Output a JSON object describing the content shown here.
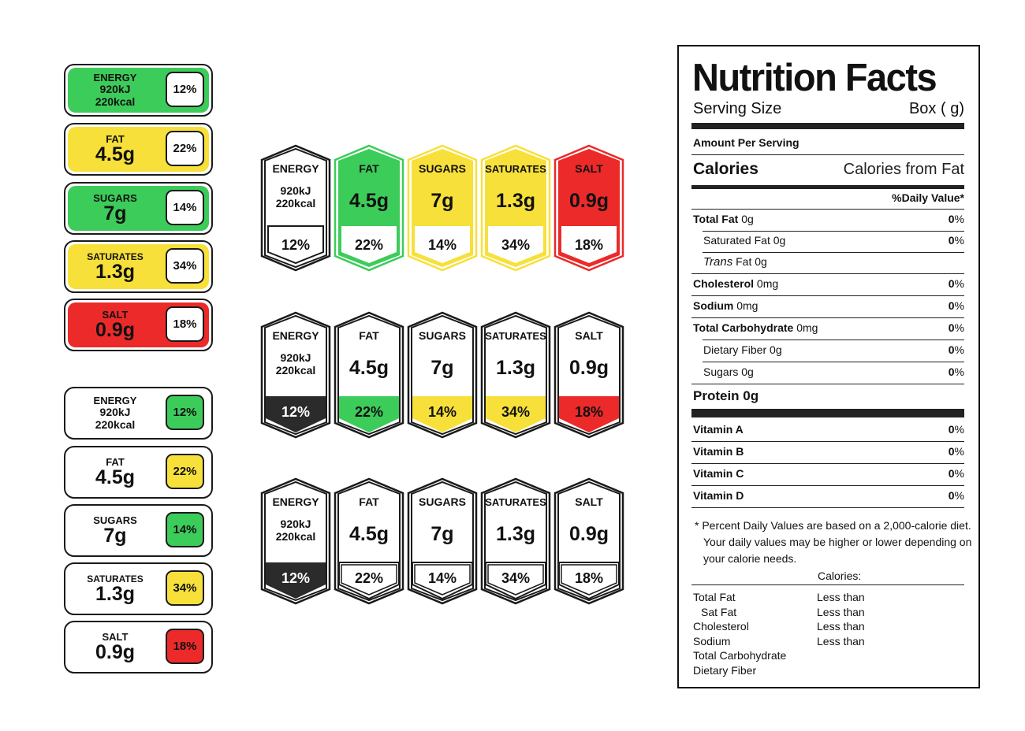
{
  "labels": {
    "energy": {
      "name": "ENERGY",
      "kj": "920kJ",
      "kcal": "220kcal",
      "percent": "12%"
    },
    "fat": {
      "name": "FAT",
      "value": "4.5g",
      "percent": "22%"
    },
    "sugars": {
      "name": "SUGARS",
      "value": "7g",
      "percent": "14%"
    },
    "saturates": {
      "name": "SATURATES",
      "value": "1.3g",
      "percent": "34%"
    },
    "salt": {
      "name": "SALT",
      "value": "0.9g",
      "percent": "18%"
    }
  },
  "colors": {
    "green": "#3ccc5a",
    "yellow": "#f7e03a",
    "red": "#ec2a2a",
    "dark": "#2b2b2b",
    "outline": "#1a1a1a"
  },
  "grid_styles": [
    {
      "style": "full-color",
      "fills": [
        "#ffffff",
        "#3ccc5a",
        "#f7e03a",
        "#f7e03a",
        "#ec2a2a"
      ]
    },
    {
      "style": "color-percent",
      "fills": [
        "#2b2b2b",
        "#3ccc5a",
        "#f7e03a",
        "#f7e03a",
        "#ec2a2a"
      ]
    },
    {
      "style": "monochrome",
      "fills": [
        "#2b2b2b",
        "#ffffff",
        "#ffffff",
        "#ffffff",
        "#ffffff"
      ]
    }
  ],
  "nutrition_facts": {
    "title": "Nutrition Facts",
    "serving_size_label": "Serving Size",
    "serving_size_value": "Box ( g)",
    "amount_per_serving": "Amount Per Serving",
    "calories": "Calories",
    "calories_from_fat": "Calories from Fat",
    "daily_value_header": "%Daily Value*",
    "rows": [
      {
        "label": "Total Fat",
        "amount": "0g",
        "dv": "0",
        "pct_sign": "%",
        "bold": true,
        "indent": false,
        "italic": false
      },
      {
        "label": "Saturated Fat",
        "amount": "0g",
        "dv": "0",
        "pct_sign": "%",
        "bold": false,
        "indent": true,
        "italic": false
      },
      {
        "label": "Trans",
        "amount": "Fat 0g",
        "dv": "",
        "pct_sign": "",
        "bold": false,
        "indent": true,
        "italic": true
      },
      {
        "label": "Cholesterol",
        "amount": "0mg",
        "dv": "0",
        "pct_sign": "%",
        "bold": true,
        "indent": false,
        "italic": false
      },
      {
        "label": "Sodium",
        "amount": "0mg",
        "dv": "0",
        "pct_sign": "%",
        "bold": true,
        "indent": false,
        "italic": false
      },
      {
        "label": "Total Carbohydrate",
        "amount": "0mg",
        "dv": "0",
        "pct_sign": "%",
        "bold": true,
        "indent": false,
        "italic": false
      },
      {
        "label": "Dietary Fiber",
        "amount": "0g",
        "dv": "0",
        "pct_sign": "%",
        "bold": false,
        "indent": true,
        "italic": false
      },
      {
        "label": "Sugars",
        "amount": "0g",
        "dv": "0",
        "pct_sign": "%",
        "bold": false,
        "indent": true,
        "italic": false
      }
    ],
    "protein": "Protein 0g",
    "vitamins": [
      {
        "label": "Vitamin A",
        "dv": "0",
        "pct_sign": "%"
      },
      {
        "label": "Vitamin B",
        "dv": "0",
        "pct_sign": "%"
      },
      {
        "label": "Vitamin C",
        "dv": "0",
        "pct_sign": "%"
      },
      {
        "label": "Vitamin D",
        "dv": "0",
        "pct_sign": "%"
      }
    ],
    "footnote_line1": "* Percent Daily Values are based on a 2,000-calorie diet.",
    "footnote_line2": "Your daily values may be higher or lower depending on",
    "footnote_line3": "your calorie needs.",
    "calories_header": "Calories:",
    "limits": [
      {
        "label": "Total Fat",
        "limit": "Less than"
      },
      {
        "label": "Sat Fat",
        "limit": "Less than"
      },
      {
        "label": "Cholesterol",
        "limit": "Less than"
      },
      {
        "label": "Sodium",
        "limit": "Less than"
      },
      {
        "label": "Total Carbohydrate",
        "limit": ""
      },
      {
        "label": "Dietary Fiber",
        "limit": ""
      }
    ]
  }
}
